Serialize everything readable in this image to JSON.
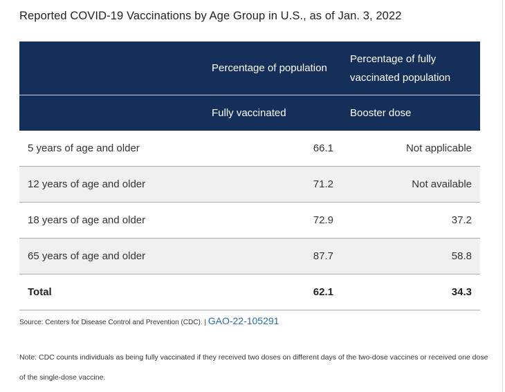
{
  "title": "Reported COVID-19 Vaccinations by Age Group in U.S., as of Jan. 3, 2022",
  "table": {
    "header_row1": [
      "",
      "Percentage of population",
      "Percentage of fully vaccinated population"
    ],
    "header_row2": [
      "",
      "Fully vaccinated",
      "Booster dose"
    ],
    "rows": [
      {
        "label": "5 years of age and older",
        "fully_vaccinated": "66.1",
        "booster": "Not applicable"
      },
      {
        "label": "12 years of age and older",
        "fully_vaccinated": "71.2",
        "booster": "Not available"
      },
      {
        "label": "18 years of age and older",
        "fully_vaccinated": "72.9",
        "booster": "37.2"
      },
      {
        "label": "65 years of age and older",
        "fully_vaccinated": "87.7",
        "booster": "58.8"
      }
    ],
    "total": {
      "label": "Total",
      "fully_vaccinated": "62.1",
      "booster": "34.3"
    }
  },
  "source": {
    "text": "Source: Centers for Disease Control and Prevention (CDC). |",
    "link": "GAO-22-105291"
  },
  "note": "Note: CDC counts individuals as being fully vaccinated if they received two doses on different days of the two-dose vaccines or received one dose of the single-dose vaccine.",
  "colors": {
    "header_bg": "#14305a",
    "alt_row": "#f0f0f0",
    "link": "#2a6aa8"
  }
}
